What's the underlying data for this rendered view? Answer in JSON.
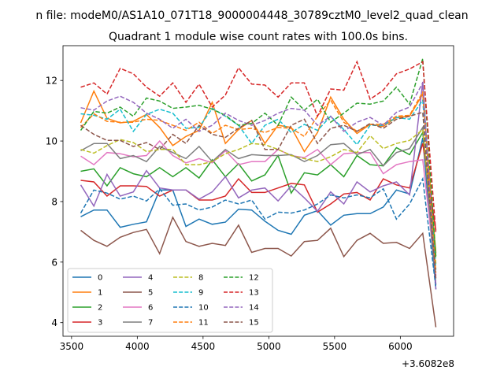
{
  "chart_data": {
    "type": "line",
    "suptitle": "n file: modeM0/AS1A10_071T18_9000004448_30789cztM0_level2_quad_clean",
    "title": "Quadrant 1 module wise count rates with 100.0s bins.",
    "xlabel": "",
    "ylabel": "",
    "x_offset_label": "+3.6082e8",
    "xlim": [
      3435,
      6405
    ],
    "ylim": [
      3.55,
      13.15
    ],
    "xticks": [
      3500,
      4000,
      4500,
      5000,
      5500,
      6000
    ],
    "yticks": [
      4,
      6,
      8,
      10,
      12
    ],
    "grid": false,
    "legend_position": "lower-left",
    "x": [
      3570,
      3670,
      3770,
      3870,
      3970,
      4070,
      4170,
      4270,
      4370,
      4470,
      4570,
      4670,
      4770,
      4870,
      4970,
      5070,
      5170,
      5270,
      5370,
      5470,
      5570,
      5670,
      5770,
      5870,
      5970,
      6070,
      6170,
      6270
    ],
    "series": [
      {
        "name": "0",
        "style": "solid",
        "values": [
          7.5,
          7.72,
          7.72,
          7.15,
          7.25,
          7.33,
          8.38,
          8.38,
          7.18,
          7.42,
          7.25,
          7.32,
          7.75,
          7.72,
          7.35,
          7.05,
          6.92,
          7.55,
          7.7,
          7.22,
          7.55,
          7.6,
          7.6,
          7.82,
          8.38,
          8.25,
          10.1,
          5.1
        ]
      },
      {
        "name": "1",
        "style": "solid",
        "values": [
          10.6,
          11.65,
          10.75,
          10.6,
          10.65,
          10.88,
          10.45,
          9.85,
          10.15,
          10.35,
          11.28,
          9.92,
          10.38,
          10.68,
          9.92,
          10.52,
          10.45,
          9.65,
          10.28,
          11.45,
          10.72,
          10.25,
          10.55,
          10.48,
          10.78,
          10.82,
          11.55,
          6.3
        ]
      },
      {
        "name": "2",
        "style": "solid",
        "values": [
          9.0,
          9.08,
          8.52,
          9.12,
          8.92,
          8.82,
          9.12,
          8.82,
          9.12,
          8.78,
          9.38,
          8.82,
          9.25,
          8.68,
          8.88,
          9.52,
          8.28,
          8.95,
          8.88,
          9.22,
          8.82,
          9.52,
          9.22,
          9.18,
          9.78,
          9.55,
          10.28,
          6.2
        ]
      },
      {
        "name": "3",
        "style": "solid",
        "values": [
          8.7,
          8.65,
          8.18,
          8.52,
          8.52,
          8.5,
          8.18,
          8.38,
          8.38,
          8.05,
          8.05,
          8.18,
          8.75,
          8.3,
          8.3,
          8.45,
          8.6,
          8.55,
          7.65,
          7.92,
          8.25,
          8.3,
          8.05,
          8.75,
          8.55,
          8.45,
          9.92,
          7.05
        ]
      },
      {
        "name": "4",
        "style": "solid",
        "values": [
          8.55,
          7.85,
          8.9,
          8.18,
          8.32,
          9.02,
          8.45,
          8.38,
          8.38,
          8.08,
          8.32,
          8.82,
          8.12,
          8.38,
          8.45,
          8.02,
          8.52,
          8.12,
          7.68,
          8.32,
          7.92,
          8.65,
          8.32,
          8.52,
          8.65,
          8.22,
          11.95,
          5.1
        ]
      },
      {
        "name": "5",
        "style": "solid",
        "values": [
          7.05,
          6.72,
          6.52,
          6.82,
          6.98,
          7.08,
          6.28,
          7.48,
          6.68,
          6.52,
          6.62,
          6.55,
          7.22,
          6.32,
          6.45,
          6.45,
          6.2,
          6.68,
          6.72,
          7.12,
          6.18,
          6.72,
          6.95,
          6.62,
          6.65,
          6.45,
          6.95,
          3.85
        ]
      },
      {
        "name": "6",
        "style": "solid",
        "values": [
          9.5,
          9.22,
          9.62,
          9.58,
          9.48,
          9.52,
          10.0,
          9.52,
          9.28,
          9.42,
          9.28,
          9.68,
          9.22,
          9.32,
          9.32,
          9.72,
          9.52,
          9.45,
          9.72,
          9.22,
          9.58,
          9.62,
          9.62,
          8.92,
          9.22,
          9.32,
          9.38,
          5.55
        ]
      },
      {
        "name": "7",
        "style": "solid",
        "values": [
          9.68,
          9.92,
          9.92,
          9.42,
          9.52,
          9.32,
          9.82,
          9.62,
          9.42,
          9.82,
          9.32,
          9.72,
          9.42,
          9.55,
          9.52,
          9.52,
          9.55,
          9.32,
          9.52,
          9.88,
          9.92,
          9.55,
          9.72,
          9.18,
          9.62,
          9.75,
          10.45,
          5.25
        ]
      },
      {
        "name": "8",
        "style": "dashed",
        "values": [
          9.72,
          9.6,
          9.85,
          10.05,
          9.95,
          9.65,
          9.72,
          9.72,
          9.22,
          9.22,
          9.32,
          9.58,
          9.72,
          9.92,
          9.88,
          9.72,
          9.52,
          9.42,
          9.32,
          9.48,
          9.72,
          9.62,
          10.18,
          9.75,
          9.92,
          10.02,
          10.38,
          5.95
        ]
      },
      {
        "name": "9",
        "style": "dashed",
        "values": [
          10.9,
          10.85,
          10.72,
          11.05,
          10.32,
          10.88,
          11.05,
          10.92,
          10.42,
          10.45,
          11.08,
          10.82,
          10.52,
          9.92,
          10.52,
          10.72,
          10.28,
          10.55,
          10.35,
          10.82,
          10.38,
          9.88,
          10.52,
          10.52,
          10.78,
          10.72,
          11.35,
          5.75
        ]
      },
      {
        "name": "10",
        "style": "dashed",
        "values": [
          7.62,
          8.38,
          8.28,
          8.08,
          8.18,
          8.02,
          8.42,
          7.88,
          7.92,
          7.72,
          7.82,
          8.05,
          7.92,
          8.05,
          7.42,
          7.65,
          7.62,
          7.72,
          7.92,
          8.22,
          8.12,
          8.22,
          8.12,
          8.42,
          7.42,
          7.92,
          8.75,
          5.15
        ]
      },
      {
        "name": "11",
        "style": "dashed",
        "values": [
          10.45,
          10.9,
          10.65,
          10.62,
          10.62,
          10.72,
          10.68,
          10.52,
          10.35,
          10.62,
          10.25,
          10.52,
          10.38,
          10.42,
          10.28,
          10.45,
          10.42,
          10.15,
          10.82,
          11.35,
          10.62,
          10.32,
          10.55,
          10.55,
          10.82,
          10.85,
          11.62,
          5.65
        ]
      },
      {
        "name": "12",
        "style": "dashed",
        "values": [
          10.35,
          10.98,
          10.92,
          11.12,
          10.82,
          11.42,
          11.32,
          11.08,
          11.12,
          11.18,
          11.05,
          10.85,
          10.52,
          10.58,
          10.92,
          10.52,
          11.45,
          11.02,
          11.38,
          10.62,
          10.92,
          11.25,
          11.22,
          11.32,
          11.78,
          11.22,
          12.72,
          6.1
        ]
      },
      {
        "name": "13",
        "style": "dashed",
        "values": [
          11.78,
          11.92,
          11.55,
          12.4,
          12.22,
          11.78,
          11.48,
          11.92,
          11.28,
          11.88,
          11.12,
          11.52,
          12.42,
          11.88,
          11.85,
          11.45,
          11.92,
          11.92,
          10.82,
          11.72,
          11.68,
          12.62,
          11.38,
          11.68,
          12.22,
          12.38,
          12.62,
          6.95
        ]
      },
      {
        "name": "14",
        "style": "dashed",
        "values": [
          11.1,
          11.02,
          11.32,
          11.48,
          11.28,
          10.92,
          10.72,
          10.42,
          10.72,
          10.32,
          10.52,
          10.92,
          10.68,
          10.52,
          10.68,
          10.92,
          11.08,
          11.02,
          10.52,
          10.82,
          10.32,
          10.62,
          10.78,
          10.52,
          10.95,
          11.12,
          11.92,
          5.25
        ]
      },
      {
        "name": "15",
        "style": "dashed",
        "values": [
          10.52,
          10.22,
          10.02,
          10.02,
          9.82,
          9.95,
          9.72,
          10.22,
          9.92,
          10.52,
          10.22,
          10.12,
          10.42,
          10.68,
          9.72,
          9.72,
          10.52,
          10.72,
          9.92,
          10.42,
          10.52,
          10.32,
          10.58,
          10.42,
          10.72,
          10.82,
          10.95,
          5.45
        ]
      }
    ]
  },
  "colors": [
    "#1f77b4",
    "#ff7f0e",
    "#2ca02c",
    "#d62728",
    "#9467bd",
    "#8c564b",
    "#e377c2",
    "#7f7f7f",
    "#bcbd22",
    "#17becf",
    "#1f77b4",
    "#ff7f0e",
    "#2ca02c",
    "#d62728",
    "#9467bd",
    "#8c564b"
  ]
}
